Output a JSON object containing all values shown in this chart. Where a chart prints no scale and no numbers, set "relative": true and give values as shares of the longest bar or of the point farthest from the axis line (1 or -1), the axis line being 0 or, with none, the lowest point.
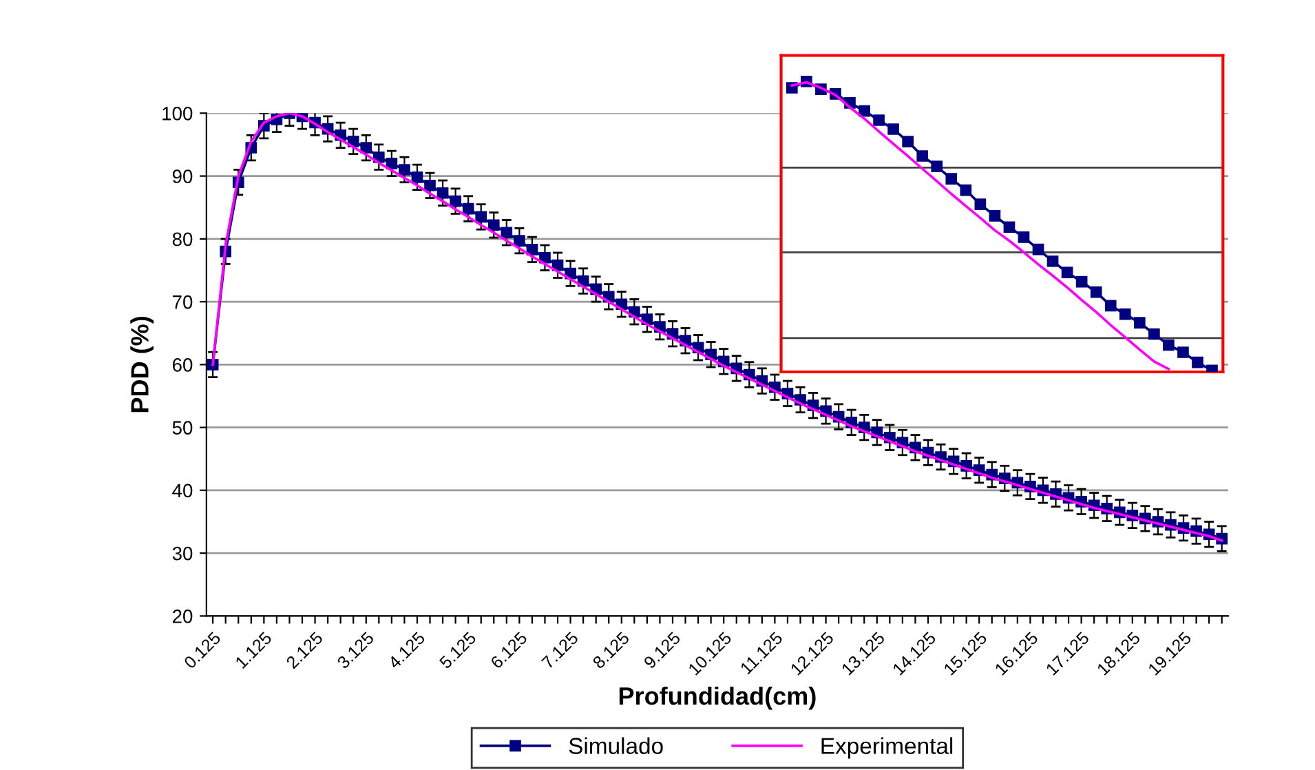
{
  "chart_data": [
    {
      "type": "line",
      "xlabel": "Profundidad(cm)",
      "ylabel": "PDD (%)",
      "ylim": [
        20,
        100
      ],
      "yticks": [
        20,
        30,
        40,
        50,
        60,
        70,
        80,
        90,
        100
      ],
      "grid": "y",
      "legend": "bottom",
      "categories": [
        "0.125",
        null,
        null,
        null,
        "1.125",
        null,
        null,
        null,
        "2.125",
        null,
        null,
        null,
        "3.125",
        null,
        null,
        null,
        "4.125",
        null,
        null,
        null,
        "5.125",
        null,
        null,
        null,
        "6.125",
        null,
        null,
        null,
        "7.125",
        null,
        null,
        null,
        "8.125",
        null,
        null,
        null,
        "9.125",
        null,
        null,
        null,
        "10.125",
        null,
        null,
        null,
        "11.125",
        null,
        null,
        null,
        "12.125",
        null,
        null,
        null,
        "13.125",
        null,
        null,
        null,
        "14.125",
        null,
        null,
        null,
        "15.125",
        null,
        null,
        null,
        "16.125",
        null,
        null,
        null,
        "17.125",
        null,
        null,
        null,
        "18.125",
        null,
        null,
        null,
        "19.125",
        null,
        null,
        null
      ],
      "series": [
        {
          "name": "Simulado",
          "color": "#000080",
          "marker": "square",
          "values": [
            60,
            78,
            89,
            94.5,
            98,
            99,
            100,
            99.5,
            98.5,
            97.5,
            96.5,
            95.5,
            94.5,
            93,
            92,
            91,
            89.8,
            88.5,
            87.3,
            86,
            84.8,
            83.5,
            82.2,
            81,
            79.7,
            78.3,
            77,
            75.8,
            74.5,
            73.3,
            72,
            70.8,
            69.6,
            68.4,
            67.2,
            66,
            64.9,
            63.8,
            62.7,
            61.6,
            60.5,
            59.4,
            58.4,
            57.4,
            56.4,
            55.4,
            54.4,
            53.5,
            52.6,
            51.7,
            50.8,
            50,
            49.2,
            48.4,
            47.6,
            46.8,
            46,
            45.3,
            44.6,
            43.9,
            43.2,
            42.5,
            41.9,
            41.2,
            40.6,
            40,
            39.4,
            38.8,
            38.2,
            37.6,
            37.1,
            36.5,
            36,
            35.5,
            35,
            34.5,
            34,
            33.5,
            33,
            32.3
          ],
          "errors": [
            2,
            2,
            2,
            2,
            2,
            2,
            2,
            2,
            2,
            2,
            2,
            2,
            2,
            2,
            2,
            2,
            2,
            2,
            2,
            2,
            2,
            2,
            2,
            2,
            2,
            2,
            2,
            2,
            2,
            2,
            2,
            2,
            2,
            2,
            2,
            2,
            2,
            2,
            2,
            2,
            2,
            2,
            2,
            2,
            2,
            2,
            2,
            2,
            2,
            2,
            2,
            2,
            2,
            2,
            2,
            2,
            2,
            2,
            2,
            2,
            2,
            2,
            2,
            2,
            2,
            2,
            2,
            2,
            2,
            2,
            2,
            2,
            2,
            2,
            2,
            2,
            2,
            2,
            2,
            2
          ]
        },
        {
          "name": "Experimental",
          "color": "#ff00ff",
          "marker": "none",
          "values": [
            60,
            79,
            90,
            95.5,
            98.5,
            99.5,
            100,
            99.5,
            98.3,
            97,
            95.8,
            94.6,
            93.4,
            92.1,
            90.9,
            89.7,
            88.5,
            87.2,
            86,
            84.7,
            83.5,
            82.2,
            81,
            79.7,
            78.5,
            77.2,
            76,
            74.8,
            73.6,
            72.4,
            71.2,
            70,
            68.8,
            67.6,
            66.4,
            65.3,
            64.2,
            63.1,
            62,
            60.9,
            59.8,
            58.8,
            57.8,
            56.8,
            55.8,
            54.8,
            53.8,
            52.9,
            52,
            51.1,
            50.2,
            49.4,
            48.6,
            47.8,
            47,
            46.2,
            45.5,
            44.8,
            44.1,
            43.4,
            42.7,
            42,
            41.4,
            40.8,
            40.2,
            39.6,
            39,
            38.4,
            37.8,
            37.2,
            36.7,
            36.2,
            35.7,
            35.2,
            34.7,
            34.2,
            33.7,
            33.2,
            32.7,
            32
          ]
        }
      ]
    },
    {
      "type": "line",
      "relative": true,
      "categories": [
        null,
        null,
        null,
        null,
        null,
        null,
        null,
        null,
        null,
        null,
        null,
        null,
        null,
        null,
        null,
        null,
        null,
        null,
        null,
        null,
        null,
        null,
        null,
        null,
        null,
        null,
        null,
        null,
        null,
        null
      ],
      "ref_lines": [
        {
          "axis": "y",
          "value": 0.702,
          "color": "#404040"
        },
        {
          "axis": "y",
          "value": 0.409,
          "color": "#404040"
        },
        {
          "axis": "y",
          "value": 0.112,
          "color": "#404040"
        }
      ],
      "series": [
        {
          "color": "#000080",
          "marker": "square",
          "values": [
            0.978,
            1,
            0.973,
            0.957,
            0.926,
            0.898,
            0.866,
            0.835,
            0.792,
            0.742,
            0.706,
            0.663,
            0.624,
            0.575,
            0.535,
            0.496,
            0.461,
            0.419,
            0.378,
            0.339,
            0.307,
            0.271,
            0.224,
            0.195,
            0.165,
            0.126,
            0.088,
            0.063,
            0.028,
            0
          ]
        },
        {
          "color": "#ff00ff",
          "marker": "none",
          "values": [
            0.986,
            0.997,
            0.978,
            0.953,
            0.91,
            0.871,
            0.827,
            0.784,
            0.742,
            0.698,
            0.655,
            0.611,
            0.569,
            0.528,
            0.485,
            0.449,
            0.409,
            0.367,
            0.328,
            0.287,
            0.244,
            0.202,
            0.157,
            0.115,
            0.072,
            0.031,
            0.005,
            null,
            null,
            null
          ]
        }
      ]
    }
  ]
}
